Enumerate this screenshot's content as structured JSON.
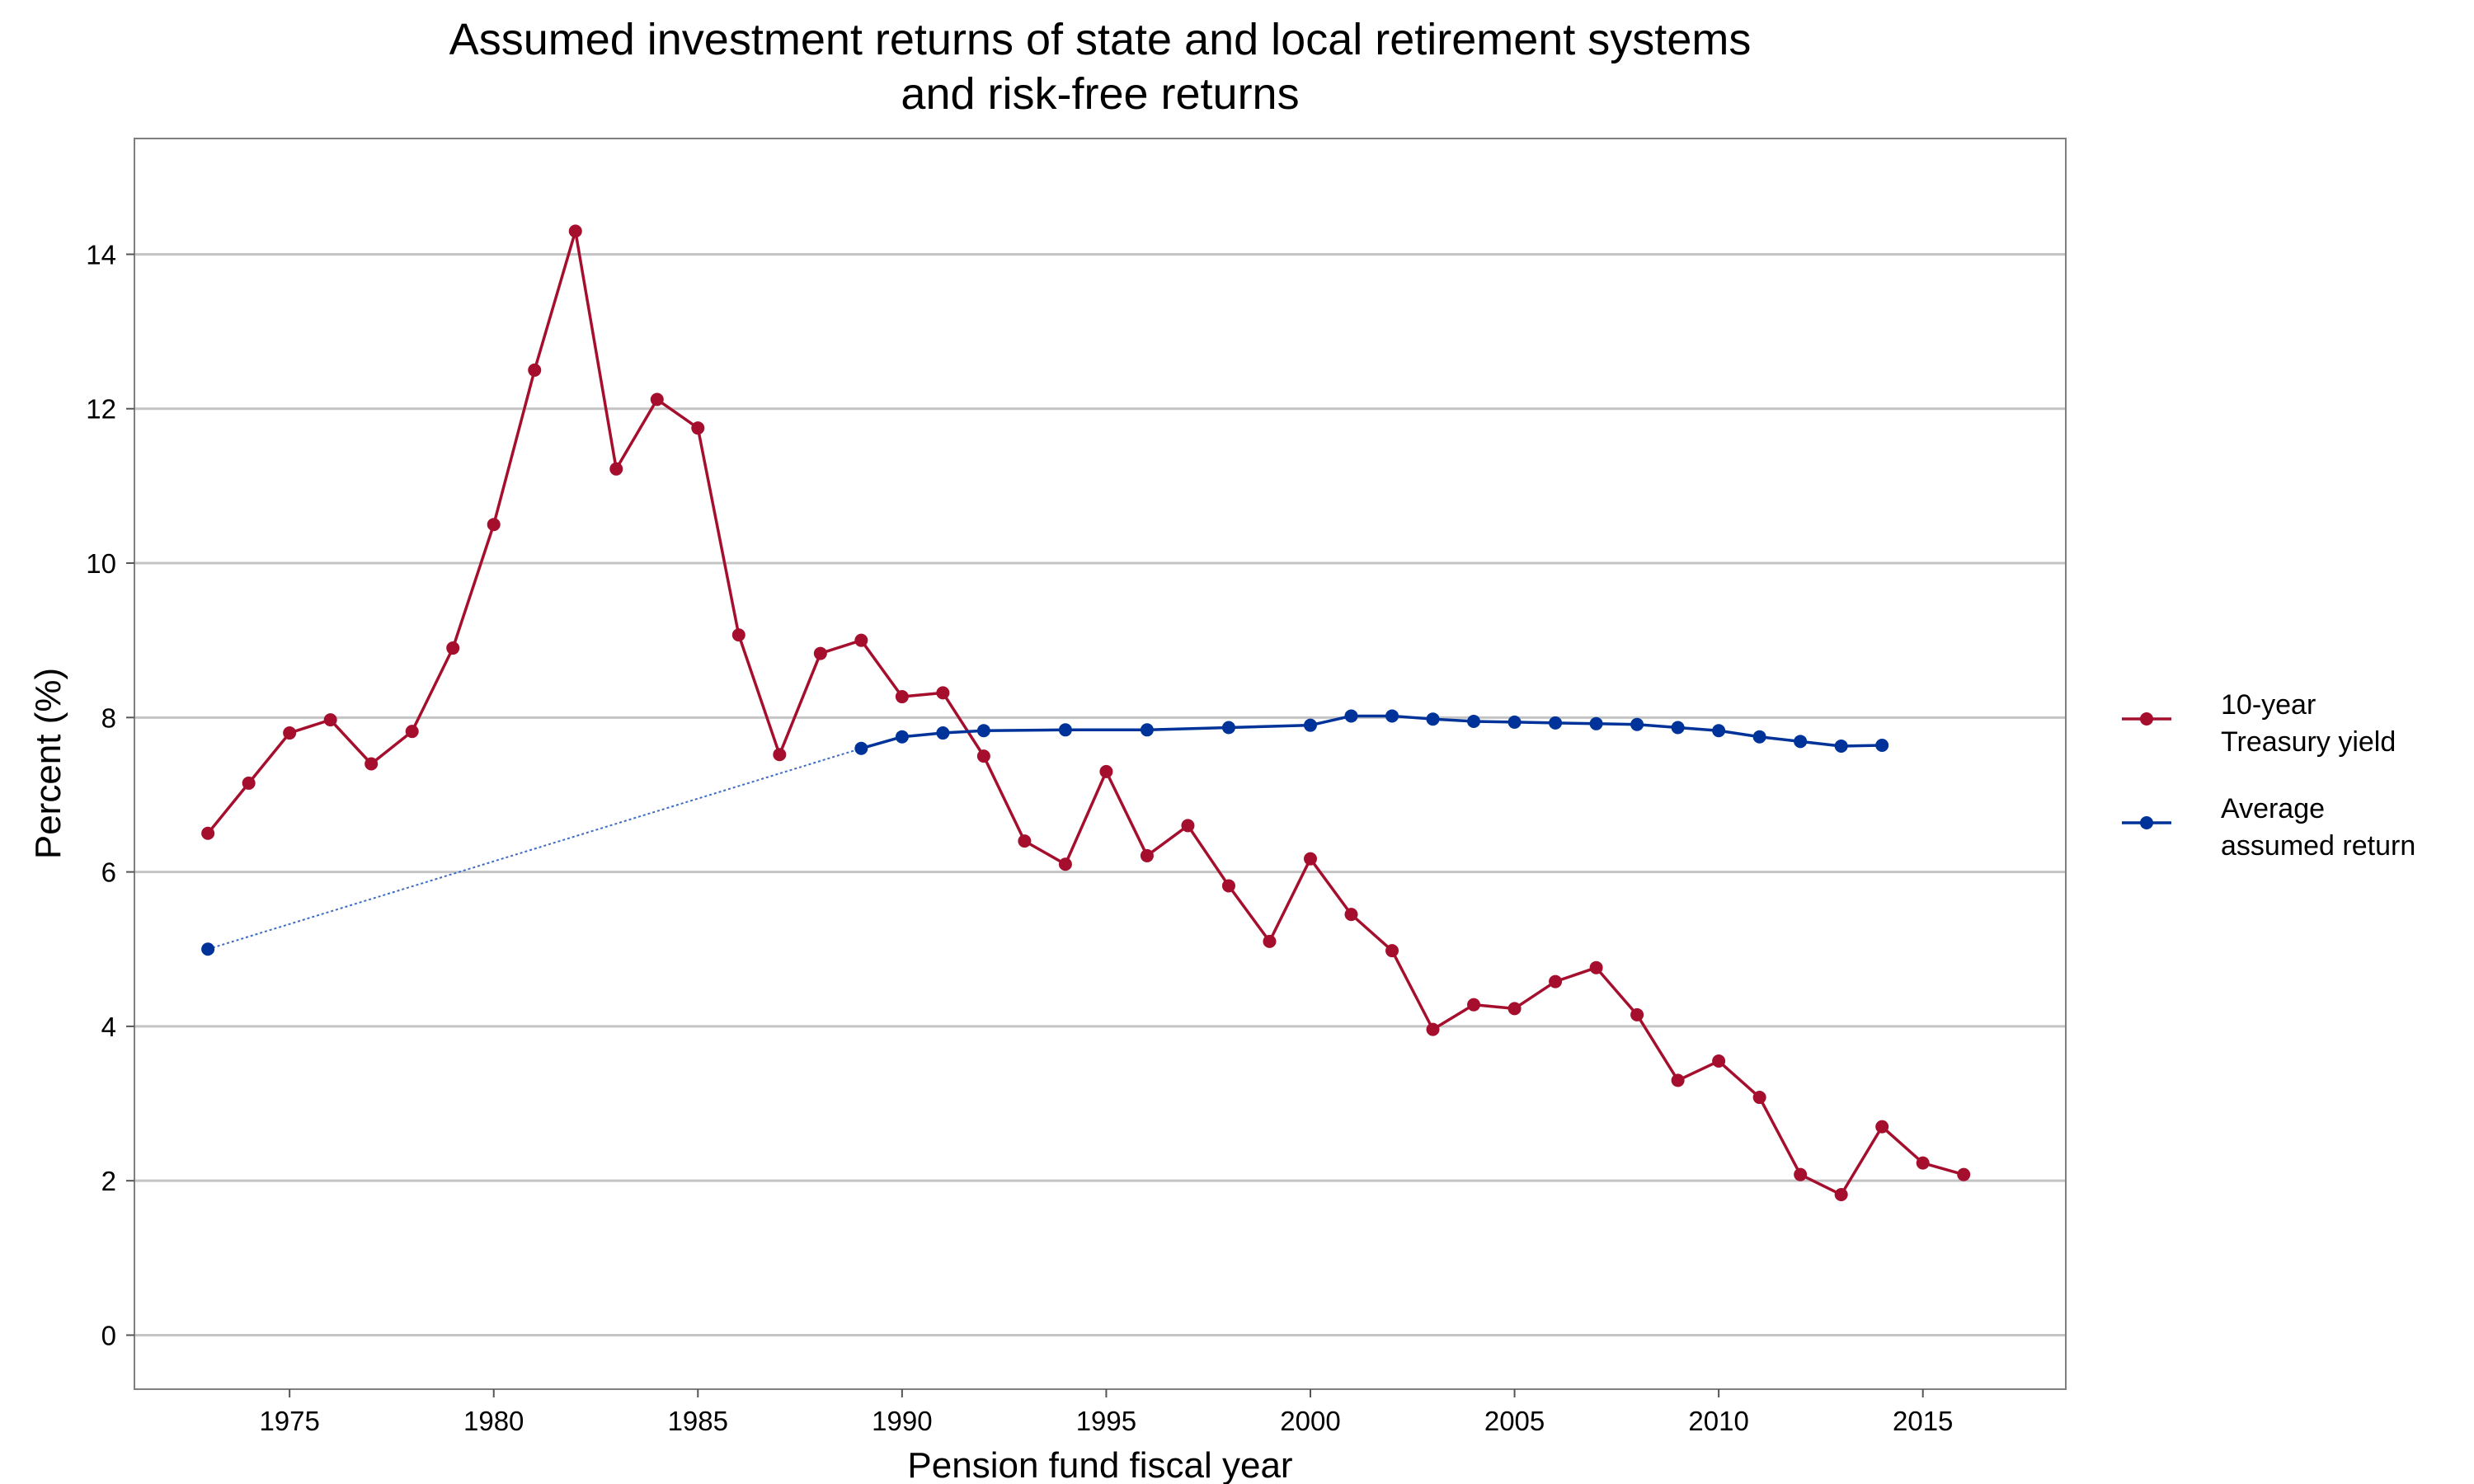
{
  "chart_data": {
    "type": "line",
    "title": "Assumed investment returns of state and local retirement systems",
    "subtitle": "and risk-free returns",
    "xlabel": "Pension fund fiscal year",
    "ylabel": "Percent (%)",
    "xlim": [
      1971.2,
      2018.5
    ],
    "ylim": [
      -0.7,
      15.5
    ],
    "xticks": [
      1975,
      1980,
      1985,
      1990,
      1995,
      2000,
      2005,
      2010,
      2015
    ],
    "yticks": [
      0,
      2,
      4,
      6,
      8,
      10,
      12,
      14
    ],
    "grid": "horizontal",
    "legend_position": "right",
    "series": [
      {
        "name": "10-year Treasury yield",
        "legend_lines": [
          "10-year",
          "Treasury yield"
        ],
        "color": "#a50f2d",
        "style": "solid",
        "points": [
          [
            1973,
            6.5
          ],
          [
            1974,
            7.15
          ],
          [
            1975,
            7.8
          ],
          [
            1976,
            7.97
          ],
          [
            1977,
            7.4
          ],
          [
            1978,
            7.82
          ],
          [
            1979,
            8.9
          ],
          [
            1980,
            10.5
          ],
          [
            1981,
            12.5
          ],
          [
            1982,
            14.3
          ],
          [
            1983,
            11.22
          ],
          [
            1984,
            12.12
          ],
          [
            1985,
            11.75
          ],
          [
            1986,
            9.07
          ],
          [
            1987,
            7.52
          ],
          [
            1988,
            8.83
          ],
          [
            1989,
            9.0
          ],
          [
            1990,
            8.27
          ],
          [
            1991,
            8.32
          ],
          [
            1992,
            7.5
          ],
          [
            1993,
            6.4
          ],
          [
            1994,
            6.1
          ],
          [
            1995,
            7.3
          ],
          [
            1996,
            6.21
          ],
          [
            1997,
            6.6
          ],
          [
            1998,
            5.82
          ],
          [
            1999,
            5.1
          ],
          [
            2000,
            6.17
          ],
          [
            2001,
            5.45
          ],
          [
            2002,
            4.98
          ],
          [
            2003,
            3.96
          ],
          [
            2004,
            4.28
          ],
          [
            2005,
            4.23
          ],
          [
            2006,
            4.58
          ],
          [
            2007,
            4.76
          ],
          [
            2008,
            4.15
          ],
          [
            2009,
            3.3
          ],
          [
            2010,
            3.55
          ],
          [
            2011,
            3.08
          ],
          [
            2012,
            2.08
          ],
          [
            2013,
            1.82
          ],
          [
            2014,
            2.7
          ],
          [
            2015,
            2.23
          ],
          [
            2016,
            2.08
          ]
        ]
      },
      {
        "name": "Average assumed return",
        "legend_lines": [
          "Average",
          "assumed return"
        ],
        "color": "#003399",
        "style": "solid",
        "points": [
          [
            1989,
            7.6
          ],
          [
            1990,
            7.75
          ],
          [
            1991,
            7.8
          ],
          [
            1992,
            7.83
          ],
          [
            1994,
            7.84
          ],
          [
            1996,
            7.84
          ],
          [
            1998,
            7.87
          ],
          [
            2000,
            7.9
          ],
          [
            2001,
            8.02
          ],
          [
            2002,
            8.02
          ],
          [
            2003,
            7.98
          ],
          [
            2004,
            7.95
          ],
          [
            2005,
            7.94
          ],
          [
            2006,
            7.93
          ],
          [
            2007,
            7.92
          ],
          [
            2008,
            7.91
          ],
          [
            2009,
            7.87
          ],
          [
            2010,
            7.83
          ],
          [
            2011,
            7.75
          ],
          [
            2012,
            7.69
          ],
          [
            2013,
            7.63
          ],
          [
            2014,
            7.64
          ]
        ]
      }
    ],
    "connector": {
      "color": "#3d6cc2",
      "style": "dotted",
      "points": [
        [
          1973,
          5.0
        ],
        [
          1989,
          7.6
        ]
      ]
    }
  }
}
